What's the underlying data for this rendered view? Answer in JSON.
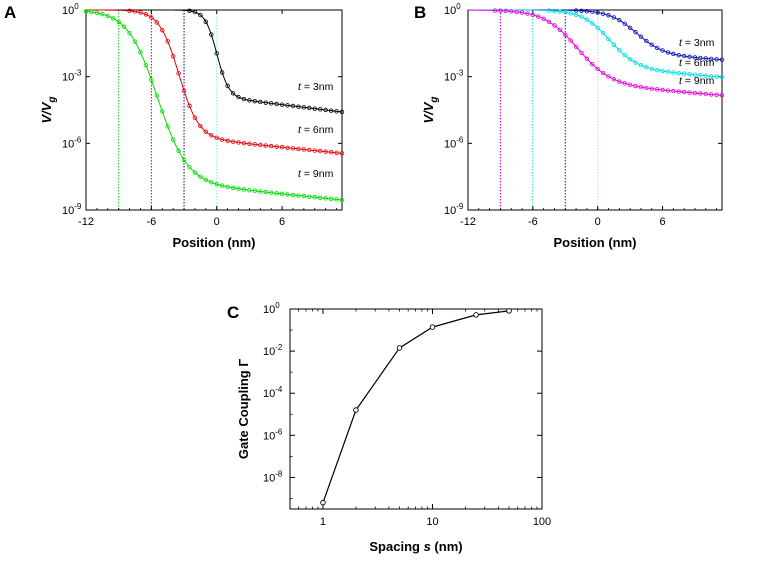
{
  "chart_data": [
    {
      "panel": "A",
      "type": "line",
      "xlabel": "Position (nm)",
      "ylabel": "V/Vg",
      "ylabel_parts": {
        "main": "V/V",
        "sub": "g"
      },
      "xlim": [
        -12,
        11.5
      ],
      "xticks": [
        -12,
        -6,
        0,
        6
      ],
      "ylim_log10": [
        -9,
        0
      ],
      "yticks": [
        {
          "base": "10",
          "exp": "0",
          "v": 0
        },
        {
          "base": "10",
          "exp": "-3",
          "v": -3
        },
        {
          "base": "10",
          "exp": "-6",
          "v": -6
        },
        {
          "base": "10",
          "exp": "-9",
          "v": -9
        }
      ],
      "y_scale": "log",
      "series": [
        {
          "name": "t = 3nm",
          "label_prefix": "t",
          "label_suffix": " = 3nm",
          "color": "#000000",
          "gate_edge": -3,
          "transition_center": 0,
          "transition_width": 1.2,
          "floor_log10": -3.9,
          "floor_slope": -0.06
        },
        {
          "name": "t = 6nm",
          "label_prefix": "t",
          "label_suffix": " = 6nm",
          "color": "#e8000b",
          "gate_edge": -6,
          "transition_center": -3.5,
          "transition_width": 2.0,
          "floor_log10": -5.7,
          "floor_slope": -0.05
        },
        {
          "name": "t = 9nm",
          "label_prefix": "t",
          "label_suffix": " = 9nm",
          "color": "#00dd00",
          "gate_edge": -9,
          "transition_center": -5.5,
          "transition_width": 3.0,
          "floor_log10": -7.7,
          "floor_slope": -0.05
        }
      ],
      "vertical_lines": [
        {
          "x": -9,
          "color": "#00dd00"
        },
        {
          "x": -6,
          "color": "#e8000b"
        },
        {
          "x": -3,
          "color": "#000080"
        },
        {
          "x": 0,
          "color": "#7fffd4"
        }
      ]
    },
    {
      "panel": "B",
      "type": "line",
      "xlabel": "Position (nm)",
      "ylabel": "V/Vg",
      "ylabel_parts": {
        "main": "V/V",
        "sub": "g"
      },
      "xlim": [
        -12,
        11.5
      ],
      "xticks": [
        -12,
        -6,
        0,
        6
      ],
      "ylim_log10": [
        -9,
        0
      ],
      "yticks": [
        {
          "base": "10",
          "exp": "0",
          "v": 0
        },
        {
          "base": "10",
          "exp": "-3",
          "v": -3
        },
        {
          "base": "10",
          "exp": "-6",
          "v": -6
        },
        {
          "base": "10",
          "exp": "-9",
          "v": -9
        }
      ],
      "y_scale": "log",
      "series": [
        {
          "name": "t = 3nm",
          "label_prefix": "t",
          "label_suffix": " = 3nm",
          "color": "#1010c0",
          "gate_edge": -3,
          "transition_center": 3.5,
          "transition_width": 2.8,
          "floor_log10": -2.0,
          "floor_slope": -0.03
        },
        {
          "name": "t = 6nm",
          "label_prefix": "t",
          "label_suffix": " = 6nm",
          "color": "#00e0e0",
          "gate_edge": -6,
          "transition_center": 1.0,
          "transition_width": 2.8,
          "floor_log10": -2.6,
          "floor_slope": -0.04
        },
        {
          "name": "t = 9nm",
          "label_prefix": "t",
          "label_suffix": " = 9nm",
          "color": "#e000e0",
          "gate_edge": -9,
          "transition_center": -2.0,
          "transition_width": 3.4,
          "floor_log10": -3.3,
          "floor_slope": -0.04
        }
      ],
      "vertical_lines": [
        {
          "x": -9,
          "color": "#e000e0"
        },
        {
          "x": -6,
          "color": "#00e0e0"
        },
        {
          "x": -3,
          "color": "#1010c0"
        },
        {
          "x": 0,
          "color": "#7fffd4"
        }
      ]
    },
    {
      "panel": "C",
      "type": "line",
      "xlabel": "Spacing s (nm)",
      "xlabel_parts": {
        "before": "Spacing ",
        "var": "s",
        "after": " (nm)"
      },
      "ylabel": "Gate Coupling Γ",
      "x_scale": "log",
      "y_scale": "log",
      "xlim": [
        0.5,
        100
      ],
      "xticks": [
        {
          "label": "1",
          "v": 1
        },
        {
          "label": "10",
          "v": 10
        },
        {
          "label": "100",
          "v": 100
        }
      ],
      "ylim_log10": [
        -9.5,
        0
      ],
      "yticks": [
        {
          "base": "10",
          "exp": "0",
          "v": 0
        },
        {
          "base": "10",
          "exp": "-2",
          "v": -2
        },
        {
          "base": "10",
          "exp": "-4",
          "v": -4
        },
        {
          "base": "10",
          "exp": "-6",
          "v": -6
        },
        {
          "base": "10",
          "exp": "-8",
          "v": -8
        }
      ],
      "x": [
        1,
        2,
        5,
        10,
        25,
        50
      ],
      "y_log10": [
        -9.2,
        -4.8,
        -1.85,
        -0.86,
        -0.28,
        -0.09
      ],
      "color": "#000000"
    }
  ]
}
